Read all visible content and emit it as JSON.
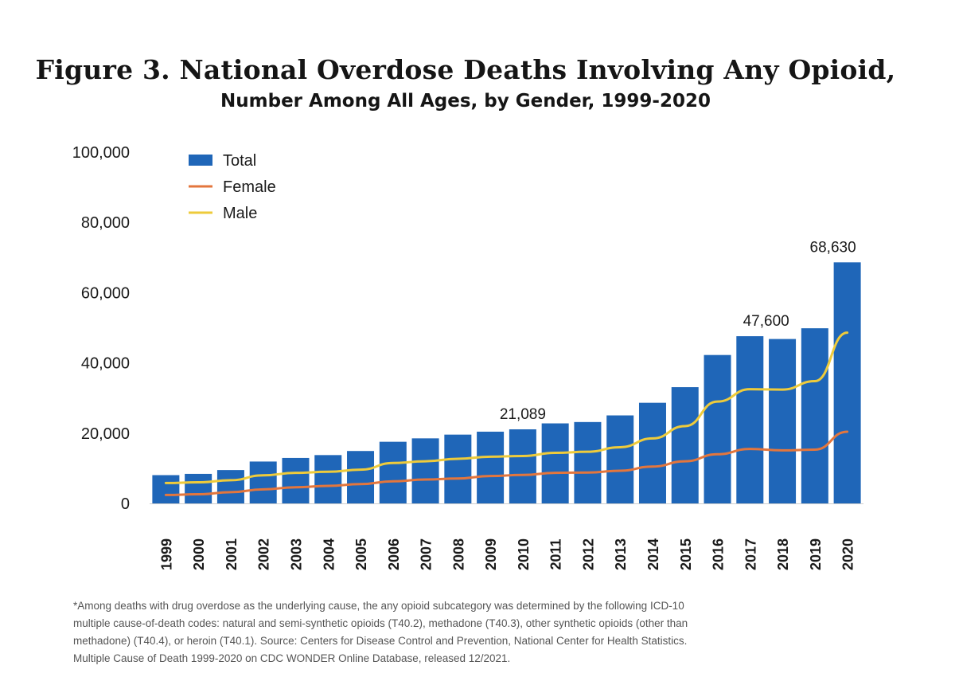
{
  "title": "Figure 3. National Overdose Deaths Involving Any Opioid,",
  "subtitle": "Number Among All Ages, by Gender, 1999-2020",
  "colors": {
    "total": "#1f66b8",
    "female": "#e3763d",
    "male": "#eecb3b"
  },
  "legend": [
    "Total",
    "Female",
    "Male"
  ],
  "footnote": [
    "*Among deaths with drug overdose as the underlying cause, the any opioid subcategory was determined by the following ICD-10",
    "multiple cause-of-death codes: natural and semi-synthetic opioids (T40.2), methadone (T40.3), other synthetic opioids (other than",
    "methadone) (T40.4), or heroin (T40.1).  Source: Centers for Disease Control and Prevention, National Center for Health Statistics.",
    "Multiple Cause of Death 1999-2020 on CDC WONDER Online Database, released 12/2021."
  ],
  "chart_data": {
    "type": "bar",
    "categories": [
      "1999",
      "2000",
      "2001",
      "2002",
      "2003",
      "2004",
      "2005",
      "2006",
      "2007",
      "2008",
      "2009",
      "2010",
      "2011",
      "2012",
      "2013",
      "2014",
      "2015",
      "2016",
      "2017",
      "2018",
      "2019",
      "2020"
    ],
    "ylim": [
      0,
      100000
    ],
    "yticks": [
      0,
      20000,
      40000,
      60000,
      80000,
      100000
    ],
    "ytick_labels": [
      "0",
      "20,000",
      "40,000",
      "60,000",
      "80,000",
      "100,000"
    ],
    "legend_position": "top-left",
    "grid": false,
    "series": [
      {
        "name": "Total",
        "kind": "bar",
        "values": [
          8050,
          8407,
          9496,
          11920,
          12940,
          13756,
          14918,
          17545,
          18516,
          19582,
          20422,
          21089,
          22784,
          23166,
          25052,
          28647,
          33091,
          42249,
          47600,
          46802,
          49860,
          68630
        ]
      },
      {
        "name": "Female",
        "kind": "line",
        "values": [
          2400,
          2600,
          3200,
          4000,
          4600,
          5000,
          5500,
          6300,
          6800,
          7100,
          7800,
          8100,
          8700,
          8800,
          9300,
          10500,
          12000,
          14000,
          15500,
          15100,
          15300,
          20400
        ]
      },
      {
        "name": "Male",
        "kind": "line",
        "values": [
          5800,
          6000,
          6600,
          8000,
          8700,
          9000,
          9600,
          11500,
          12000,
          12700,
          13300,
          13500,
          14400,
          14700,
          16000,
          18500,
          22000,
          29000,
          32500,
          32400,
          34800,
          48600
        ]
      }
    ],
    "annotations": [
      {
        "category": "2010",
        "value": 21089,
        "label": "21,089"
      },
      {
        "category": "2017",
        "value": 47600,
        "label": "47,600"
      },
      {
        "category": "2020",
        "value": 68630,
        "label": "68,630"
      }
    ]
  }
}
